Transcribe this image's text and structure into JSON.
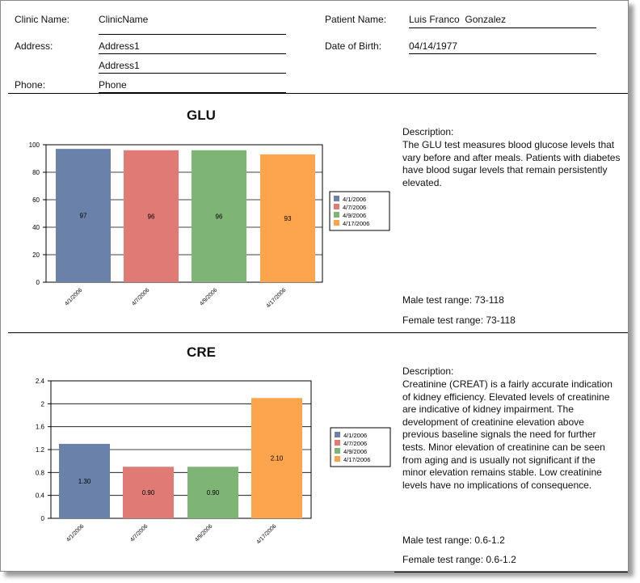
{
  "header": {
    "clinic_name_label": "Clinic Name:",
    "clinic_name": "ClinicName",
    "address_label": "Address:",
    "address1": "Address1",
    "address2": "Address1",
    "phone_label": "Phone:",
    "phone": "Phone",
    "patient_name_label": "Patient Name:",
    "patient_name": "Luis Franco  Gonzalez",
    "dob_label": "Date of Birth:",
    "dob": "04/14/1977"
  },
  "sections": [
    {
      "title": "GLU",
      "description_label": "Description:",
      "description": "The GLU test measures blood glucose levels that vary before and after meals. Patients with diabetes have blood sugar levels that remain persistently elevated.",
      "male_range": "Male test range: 73-118",
      "female_range": "Female test range: 73-118"
    },
    {
      "title": "CRE",
      "description_label": "Description:",
      "description": "Creatinine (CREAT) is a fairly accurate indication of kidney efficiency. Elevated levels of creatinine are indicative of kidney impairment. The development of creatinine elevation above previous baseline signals the need for further tests. Minor elevation of creatinine can be seen from aging and is usually not significant if the minor elevation remains stable. Low creatinine levels have no implications of consequence.",
      "male_range": "Male test range: 0.6-1.2",
      "female_range": "Female test range: 0.6-1.2"
    }
  ],
  "colors": [
    "#6a82aa",
    "#e07a74",
    "#7eb575",
    "#fca54c"
  ],
  "chart_data": [
    {
      "type": "bar",
      "title": "GLU",
      "categories": [
        "4/1/2006",
        "4/7/2006",
        "4/9/2006",
        "4/17/2006"
      ],
      "values": [
        97,
        96,
        96,
        93
      ],
      "value_labels": [
        "97",
        "96",
        "96",
        "93"
      ],
      "ylim": [
        0,
        100
      ],
      "yticks": [
        0,
        20,
        40,
        60,
        80,
        100
      ],
      "ytick_labels": [
        "0",
        "20",
        "40",
        "60",
        "80",
        "100"
      ],
      "legend": [
        "4/1/2006",
        "4/7/2006",
        "4/9/2006",
        "4/17/2006"
      ],
      "legend_position": "right",
      "grid": true
    },
    {
      "type": "bar",
      "title": "CRE",
      "categories": [
        "4/1/2006",
        "4/7/2006",
        "4/9/2006",
        "4/17/2006"
      ],
      "values": [
        1.3,
        0.9,
        0.9,
        2.1
      ],
      "value_labels": [
        "1.30",
        "0.90",
        "0.90",
        "2.10"
      ],
      "ylim": [
        0,
        2.4
      ],
      "yticks": [
        0,
        0.4,
        0.8,
        1.2,
        1.6,
        2,
        2.4
      ],
      "ytick_labels": [
        "0",
        "0.4",
        "0.8",
        "1.2",
        "1.6",
        "2",
        "2.4"
      ],
      "legend": [
        "4/1/2006",
        "4/7/2006",
        "4/9/2006",
        "4/17/2006"
      ],
      "legend_position": "right",
      "grid": true
    }
  ]
}
